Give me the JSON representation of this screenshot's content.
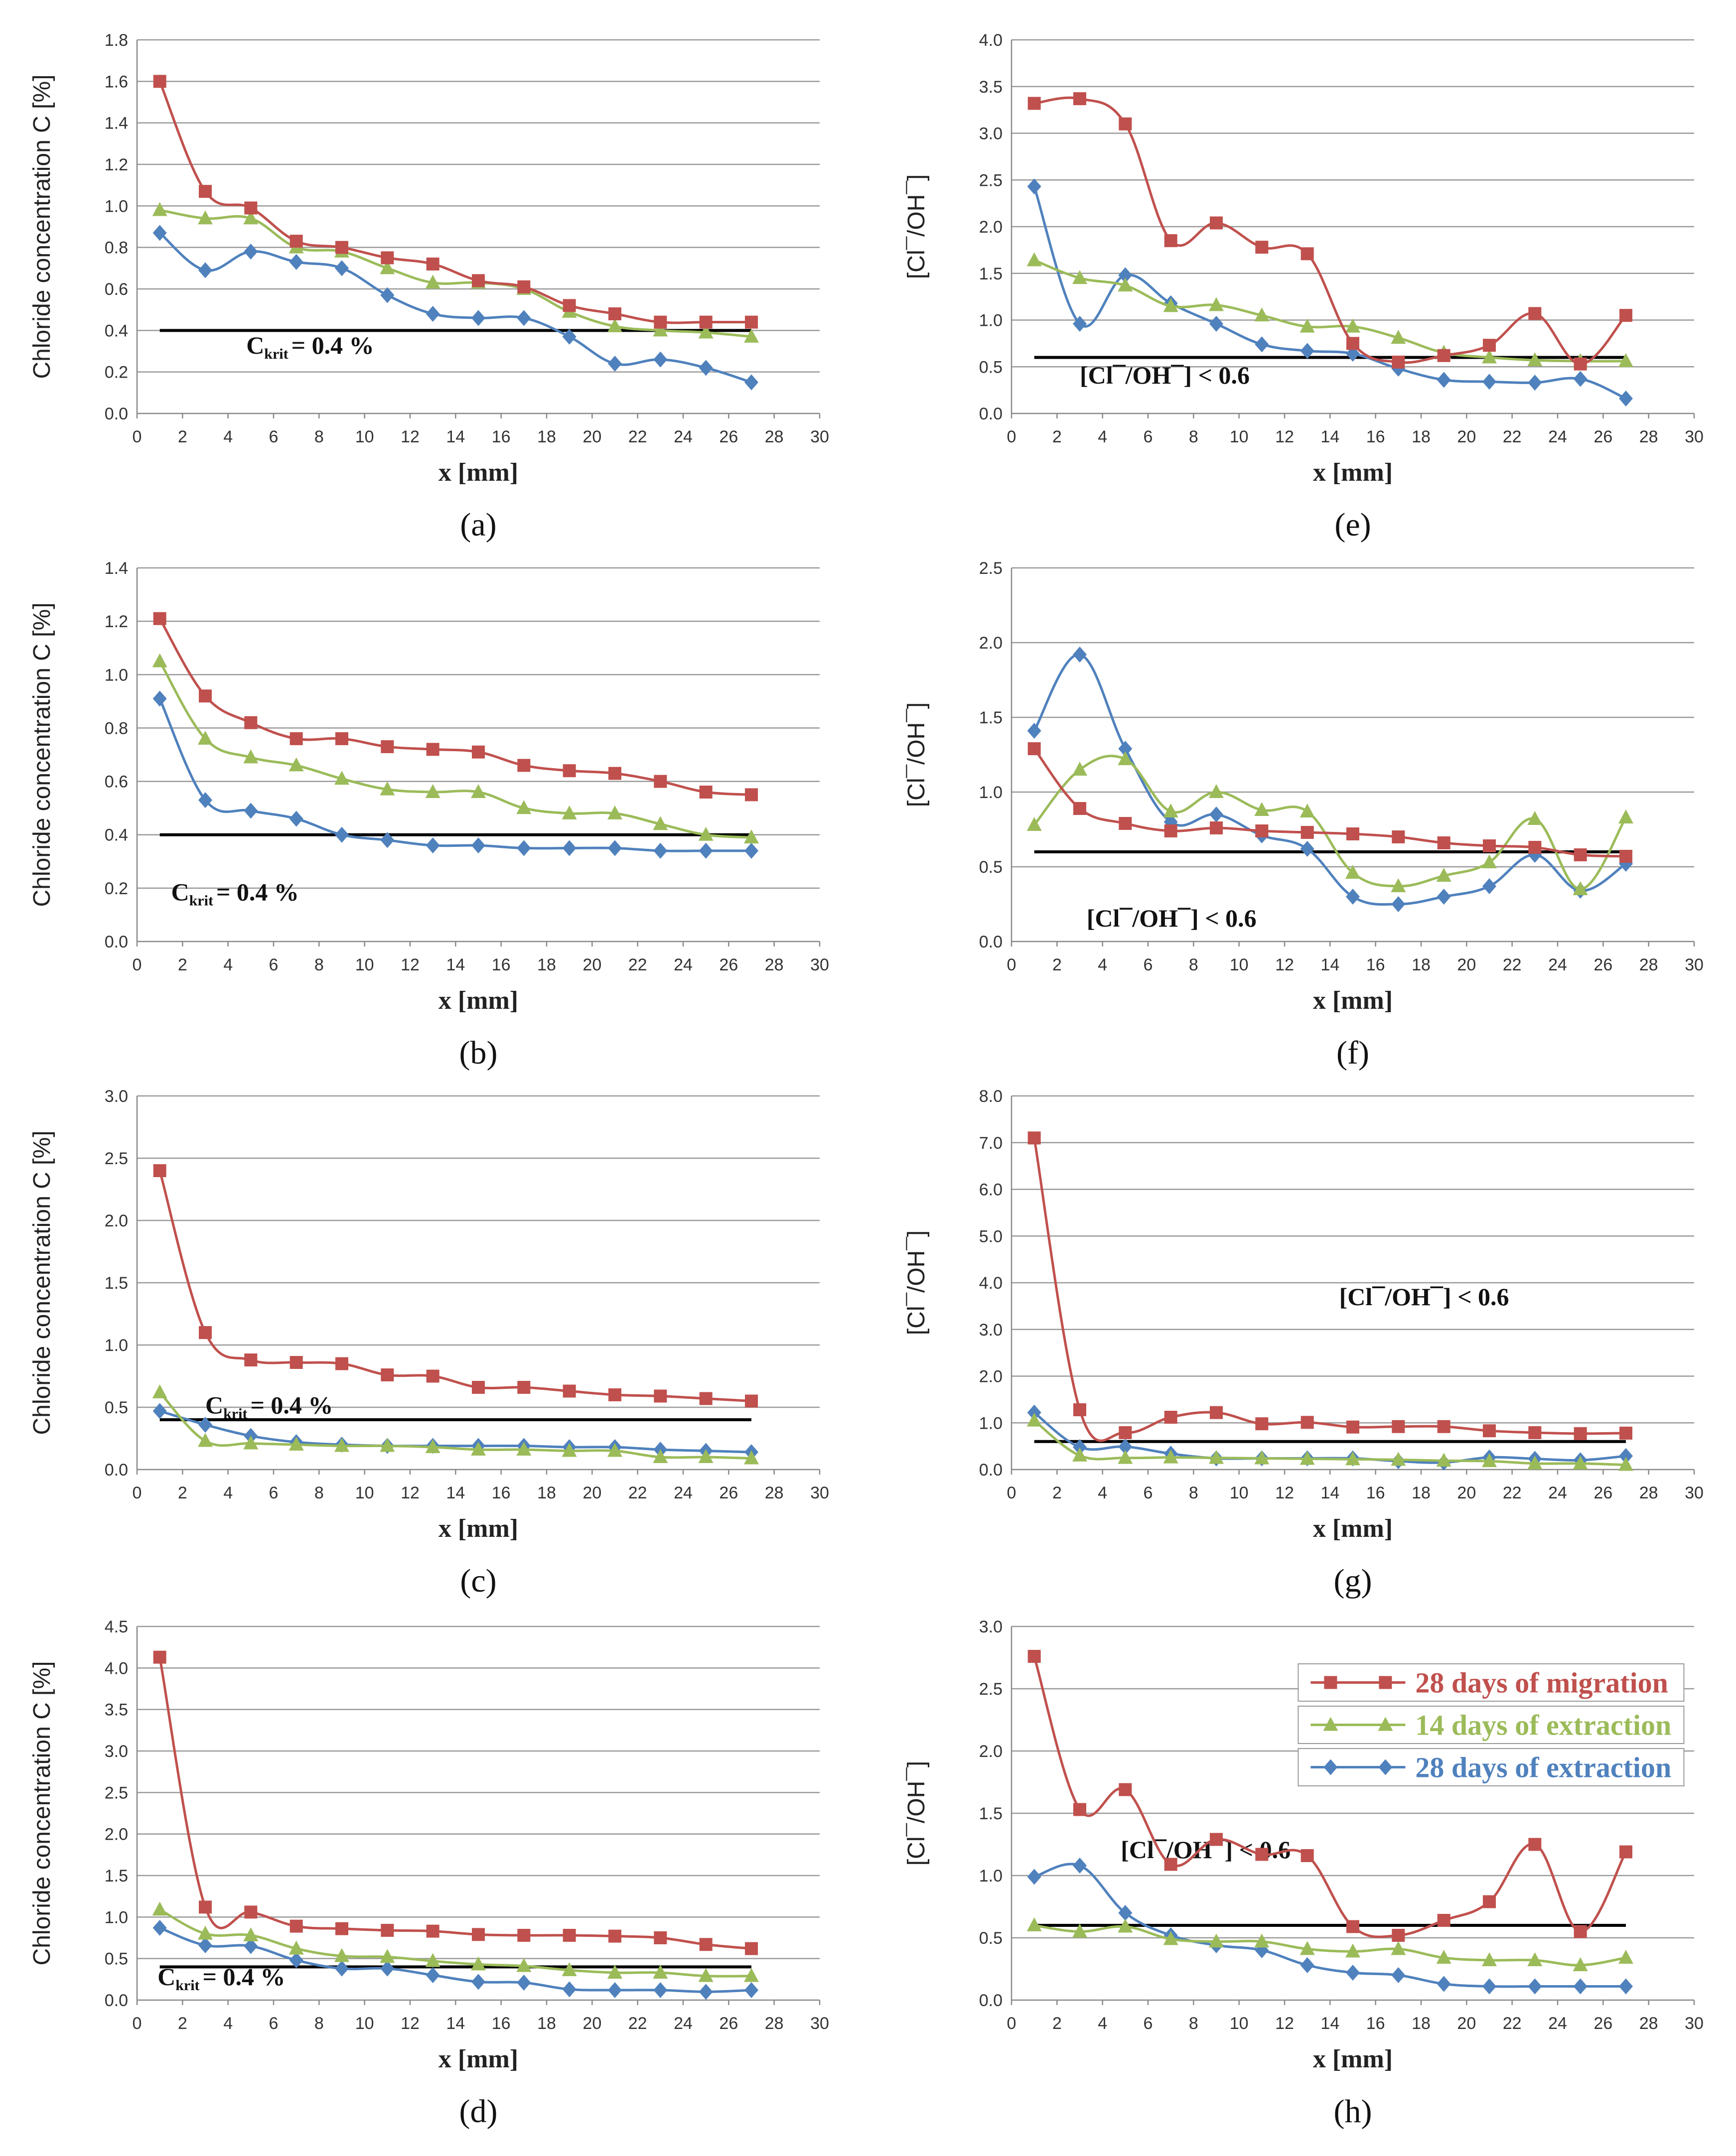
{
  "chart_data": [
    {
      "type": "line",
      "panel": "a",
      "xlabel": "x [mm]",
      "ylabel": "Chloride concentration C [%]",
      "ylim": [
        0,
        1.8
      ],
      "ystep": 0.2,
      "ydec": 1,
      "xlim": [
        0,
        30
      ],
      "xstep": 2,
      "x": [
        1,
        3,
        5,
        7,
        9,
        11,
        13,
        15,
        17,
        19,
        21,
        23,
        25,
        27
      ],
      "series": [
        {
          "name": "28 days of migration",
          "values": [
            1.6,
            1.07,
            0.99,
            0.83,
            0.8,
            0.75,
            0.72,
            0.64,
            0.61,
            0.52,
            0.48,
            0.44,
            0.44,
            0.44
          ]
        },
        {
          "name": "14 days of extraction",
          "values": [
            0.98,
            0.94,
            0.94,
            0.8,
            0.78,
            0.7,
            0.63,
            0.63,
            0.6,
            0.49,
            0.42,
            0.4,
            0.39,
            0.37
          ]
        },
        {
          "name": "28 days of extraction",
          "values": [
            0.87,
            0.69,
            0.78,
            0.73,
            0.7,
            0.57,
            0.48,
            0.46,
            0.46,
            0.37,
            0.24,
            0.26,
            0.22,
            0.15
          ]
        }
      ],
      "threshold": {
        "value": 0.4,
        "x_range": [
          1,
          27
        ],
        "label_main": "C",
        "label_sub": "krit",
        "label_rest": "= 0.4 %"
      }
    },
    {
      "type": "line",
      "panel": "b",
      "xlabel": "x [mm]",
      "ylabel": "Chloride concentration C [%]",
      "ylim": [
        0,
        1.4
      ],
      "ystep": 0.2,
      "ydec": 1,
      "xlim": [
        0,
        30
      ],
      "xstep": 2,
      "x": [
        1,
        3,
        5,
        7,
        9,
        11,
        13,
        15,
        17,
        19,
        21,
        23,
        25,
        27
      ],
      "series": [
        {
          "name": "28 days of migration",
          "values": [
            1.21,
            0.92,
            0.82,
            0.76,
            0.76,
            0.73,
            0.72,
            0.71,
            0.66,
            0.64,
            0.63,
            0.6,
            0.56,
            0.55
          ]
        },
        {
          "name": "14 days of extraction",
          "values": [
            1.05,
            0.76,
            0.69,
            0.66,
            0.61,
            0.57,
            0.56,
            0.56,
            0.5,
            0.48,
            0.48,
            0.44,
            0.4,
            0.39
          ]
        },
        {
          "name": "28 days of extraction",
          "values": [
            0.91,
            0.53,
            0.49,
            0.46,
            0.4,
            0.38,
            0.36,
            0.36,
            0.35,
            0.35,
            0.35,
            0.34,
            0.34,
            0.34
          ]
        }
      ],
      "threshold": {
        "value": 0.4,
        "x_range": [
          1,
          27
        ],
        "label_main": "C",
        "label_sub": "krit",
        "label_rest": "= 0.4 %"
      }
    },
    {
      "type": "line",
      "panel": "c",
      "xlabel": "x [mm]",
      "ylabel": "Chloride concentration C [%]",
      "ylim": [
        0,
        3.0
      ],
      "ystep": 0.5,
      "ydec": 1,
      "xlim": [
        0,
        30
      ],
      "xstep": 2,
      "x": [
        1,
        3,
        5,
        7,
        9,
        11,
        13,
        15,
        17,
        19,
        21,
        23,
        25,
        27
      ],
      "series": [
        {
          "name": "28 days of migration",
          "values": [
            2.4,
            1.1,
            0.88,
            0.86,
            0.85,
            0.76,
            0.75,
            0.66,
            0.66,
            0.63,
            0.6,
            0.59,
            0.57,
            0.55
          ]
        },
        {
          "name": "14 days of extraction",
          "values": [
            0.62,
            0.23,
            0.21,
            0.2,
            0.19,
            0.19,
            0.18,
            0.16,
            0.16,
            0.15,
            0.15,
            0.1,
            0.1,
            0.09
          ]
        },
        {
          "name": "28 days of extraction",
          "values": [
            0.47,
            0.36,
            0.27,
            0.22,
            0.2,
            0.19,
            0.19,
            0.19,
            0.19,
            0.18,
            0.18,
            0.16,
            0.15,
            0.14
          ]
        }
      ],
      "threshold": {
        "value": 0.4,
        "x_range": [
          1,
          27
        ],
        "label_main": "C",
        "label_sub": "krit",
        "label_rest": "= 0.4 %"
      }
    },
    {
      "type": "line",
      "panel": "d",
      "xlabel": "x [mm]",
      "ylabel": "Chloride concentration C [%]",
      "ylim": [
        0,
        4.5
      ],
      "ystep": 0.5,
      "ydec": 1,
      "xlim": [
        0,
        30
      ],
      "xstep": 2,
      "x": [
        1,
        3,
        5,
        7,
        9,
        11,
        13,
        15,
        17,
        19,
        21,
        23,
        25,
        27
      ],
      "series": [
        {
          "name": "28 days of migration",
          "values": [
            4.13,
            1.12,
            1.06,
            0.89,
            0.86,
            0.84,
            0.83,
            0.79,
            0.78,
            0.78,
            0.77,
            0.75,
            0.67,
            0.62
          ]
        },
        {
          "name": "14 days of extraction",
          "values": [
            1.09,
            0.8,
            0.78,
            0.62,
            0.53,
            0.52,
            0.47,
            0.43,
            0.41,
            0.36,
            0.33,
            0.33,
            0.29,
            0.29
          ]
        },
        {
          "name": "28 days of extraction",
          "values": [
            0.87,
            0.66,
            0.65,
            0.48,
            0.38,
            0.38,
            0.3,
            0.22,
            0.21,
            0.13,
            0.12,
            0.12,
            0.1,
            0.12
          ]
        }
      ],
      "threshold": {
        "value": 0.4,
        "x_range": [
          1,
          27
        ],
        "label_main": "C",
        "label_sub": "krit",
        "label_rest": "= 0.4 %"
      }
    },
    {
      "type": "line",
      "panel": "e",
      "xlabel": "x [mm]",
      "ylabel": "[Cl¯/OH¯]",
      "ylim": [
        0,
        4.0
      ],
      "ystep": 0.5,
      "ydec": 1,
      "xlim": [
        0,
        30
      ],
      "xstep": 2,
      "x": [
        1,
        3,
        5,
        7,
        9,
        11,
        13,
        15,
        17,
        19,
        21,
        23,
        25,
        27
      ],
      "series": [
        {
          "name": "28 days of migration",
          "values": [
            3.32,
            3.37,
            3.1,
            1.85,
            2.04,
            1.78,
            1.71,
            0.75,
            0.55,
            0.62,
            0.73,
            1.07,
            0.53,
            1.05
          ]
        },
        {
          "name": "14 days of extraction",
          "values": [
            1.64,
            1.45,
            1.37,
            1.15,
            1.16,
            1.05,
            0.93,
            0.93,
            0.81,
            0.65,
            0.6,
            0.57,
            0.56,
            0.56
          ]
        },
        {
          "name": "28 days of extraction",
          "values": [
            2.43,
            0.96,
            1.48,
            1.18,
            0.96,
            0.74,
            0.67,
            0.64,
            0.48,
            0.36,
            0.34,
            0.33,
            0.37,
            0.16
          ]
        }
      ],
      "threshold": {
        "value": 0.6,
        "x_range": [
          1,
          27
        ],
        "label": "[Cl¯/OH¯] < 0.6"
      }
    },
    {
      "type": "line",
      "panel": "f",
      "xlabel": "x [mm]",
      "ylabel": "[Cl¯/OH¯]",
      "ylim": [
        0,
        2.5
      ],
      "ystep": 0.5,
      "ydec": 1,
      "xlim": [
        0,
        30
      ],
      "xstep": 2,
      "x": [
        1,
        3,
        5,
        7,
        9,
        11,
        13,
        15,
        17,
        19,
        21,
        23,
        25,
        27
      ],
      "series": [
        {
          "name": "28 days of migration",
          "values": [
            1.29,
            0.89,
            0.79,
            0.74,
            0.76,
            0.74,
            0.73,
            0.72,
            0.7,
            0.66,
            0.64,
            0.63,
            0.58,
            0.57
          ]
        },
        {
          "name": "14 days of extraction",
          "values": [
            0.78,
            1.15,
            1.22,
            0.87,
            1.0,
            0.88,
            0.87,
            0.46,
            0.37,
            0.44,
            0.53,
            0.82,
            0.35,
            0.83
          ]
        },
        {
          "name": "28 days of extraction",
          "values": [
            1.41,
            1.92,
            1.29,
            0.8,
            0.85,
            0.71,
            0.62,
            0.3,
            0.25,
            0.3,
            0.37,
            0.58,
            0.34,
            0.52
          ]
        }
      ],
      "threshold": {
        "value": 0.6,
        "x_range": [
          1,
          27
        ],
        "label": "[Cl¯/OH¯] < 0.6"
      }
    },
    {
      "type": "line",
      "panel": "g",
      "xlabel": "x [mm]",
      "ylabel": "[Cl¯/OH¯]",
      "ylim": [
        0,
        8.0
      ],
      "ystep": 1.0,
      "ydec": 1,
      "xlim": [
        0,
        30
      ],
      "xstep": 2,
      "x": [
        1,
        3,
        5,
        7,
        9,
        11,
        13,
        15,
        17,
        19,
        21,
        23,
        25,
        27
      ],
      "series": [
        {
          "name": "28 days of migration",
          "values": [
            7.1,
            1.28,
            0.79,
            1.12,
            1.22,
            0.98,
            1.01,
            0.91,
            0.92,
            0.92,
            0.83,
            0.79,
            0.77,
            0.78
          ]
        },
        {
          "name": "14 days of extraction",
          "values": [
            1.05,
            0.3,
            0.25,
            0.26,
            0.25,
            0.24,
            0.23,
            0.22,
            0.21,
            0.19,
            0.18,
            0.13,
            0.13,
            0.1
          ]
        },
        {
          "name": "28 days of extraction",
          "values": [
            1.22,
            0.48,
            0.49,
            0.34,
            0.24,
            0.24,
            0.24,
            0.24,
            0.18,
            0.15,
            0.26,
            0.23,
            0.2,
            0.29
          ]
        }
      ],
      "threshold": {
        "value": 0.6,
        "x_range": [
          1,
          27
        ],
        "label": "[Cl¯/OH¯] < 0.6"
      }
    },
    {
      "type": "line",
      "panel": "h",
      "xlabel": "x [mm]",
      "ylabel": "[Cl¯/OH¯]",
      "ylim": [
        0,
        3.0
      ],
      "ystep": 0.5,
      "ydec": 1,
      "xlim": [
        0,
        30
      ],
      "xstep": 2,
      "x": [
        1,
        3,
        5,
        7,
        9,
        11,
        13,
        15,
        17,
        19,
        21,
        23,
        25,
        27
      ],
      "series": [
        {
          "name": "28 days of migration",
          "values": [
            2.76,
            1.53,
            1.69,
            1.09,
            1.29,
            1.17,
            1.16,
            0.59,
            0.52,
            0.64,
            0.79,
            1.25,
            0.55,
            1.19
          ]
        },
        {
          "name": "14 days of extraction",
          "values": [
            0.6,
            0.55,
            0.59,
            0.49,
            0.47,
            0.47,
            0.41,
            0.39,
            0.41,
            0.34,
            0.32,
            0.32,
            0.28,
            0.34
          ]
        },
        {
          "name": "28 days of extraction",
          "values": [
            0.99,
            1.08,
            0.7,
            0.52,
            0.44,
            0.4,
            0.28,
            0.22,
            0.2,
            0.13,
            0.11,
            0.11,
            0.11,
            0.11
          ]
        }
      ],
      "threshold": {
        "value": 0.6,
        "x_range": [
          1,
          27
        ],
        "label": "[Cl¯/OH¯] < 0.6"
      },
      "legend": {
        "placement": "top-right",
        "entries": [
          "28 days of migration",
          "14 days of extraction",
          "28 days of extraction"
        ]
      }
    }
  ],
  "series_styles": [
    {
      "name": "28 days of migration",
      "color": "#c0504d",
      "marker": "square"
    },
    {
      "name": "14 days of extraction",
      "color": "#9bbb59",
      "marker": "triangle"
    },
    {
      "name": "28 days of extraction",
      "color": "#4f81bd",
      "marker": "diamond"
    }
  ],
  "labels": {
    "a": "(a)",
    "b": "(b)",
    "c": "(c)",
    "d": "(d)",
    "e": "(e)",
    "f": "(f)",
    "g": "(g)",
    "h": "(h)"
  }
}
